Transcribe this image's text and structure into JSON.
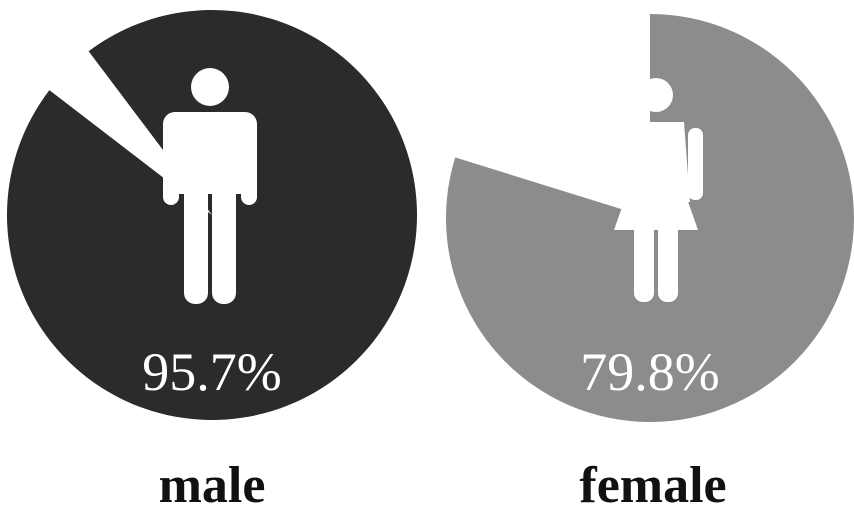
{
  "chart_data": [
    {
      "type": "pie",
      "categories": [
        "male"
      ],
      "values": [
        95.7
      ],
      "value_labels": [
        "95.7%"
      ],
      "color": "#2b2b2b"
    },
    {
      "type": "pie",
      "categories": [
        "female"
      ],
      "values": [
        79.8
      ],
      "value_labels": [
        "79.8%"
      ],
      "color": "#8c8c8c"
    }
  ]
}
